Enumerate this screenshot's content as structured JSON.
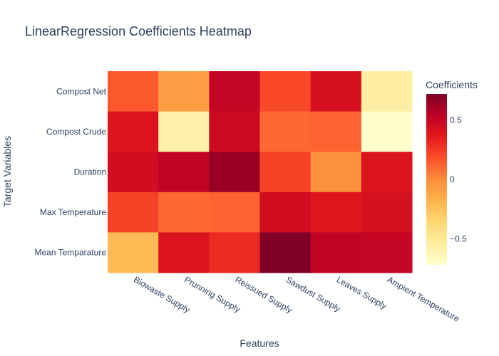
{
  "chart_data": {
    "type": "heatmap",
    "title": "LinearRegression Coefficients Heatmap",
    "xlabel": "Features",
    "ylabel": "Target Variables",
    "x": [
      "Biowaste Supply",
      "Prunning Supply",
      "Reissued Supply",
      "Sawdust Supply",
      "Leaves Supply",
      "Ampient Temperature"
    ],
    "y": [
      "Compost Net",
      "Compost Crude",
      "Duration",
      "Max Temperature",
      "Mean Temparature"
    ],
    "z": [
      [
        0.15,
        -0.08,
        0.5,
        0.2,
        0.42,
        -0.55
      ],
      [
        0.4,
        -0.58,
        0.47,
        0.1,
        0.12,
        -0.72
      ],
      [
        0.45,
        0.52,
        0.65,
        0.22,
        -0.02,
        0.4
      ],
      [
        0.22,
        0.1,
        0.12,
        0.45,
        0.38,
        0.42
      ],
      [
        -0.22,
        0.4,
        0.3,
        0.72,
        0.52,
        0.5
      ]
    ],
    "colorbar": {
      "title": "Coefficients",
      "zmin": -0.72,
      "zmax": 0.72,
      "tickvals": [
        0.5,
        0,
        -0.5
      ],
      "ticktext": [
        "0.5",
        "0",
        "−0.5"
      ]
    },
    "colorscale": [
      "#ffffcc",
      "#ffeda0",
      "#fed976",
      "#feb24c",
      "#fd8d3c",
      "#fc4e2a",
      "#e31a1c",
      "#bd0026",
      "#800026"
    ]
  }
}
